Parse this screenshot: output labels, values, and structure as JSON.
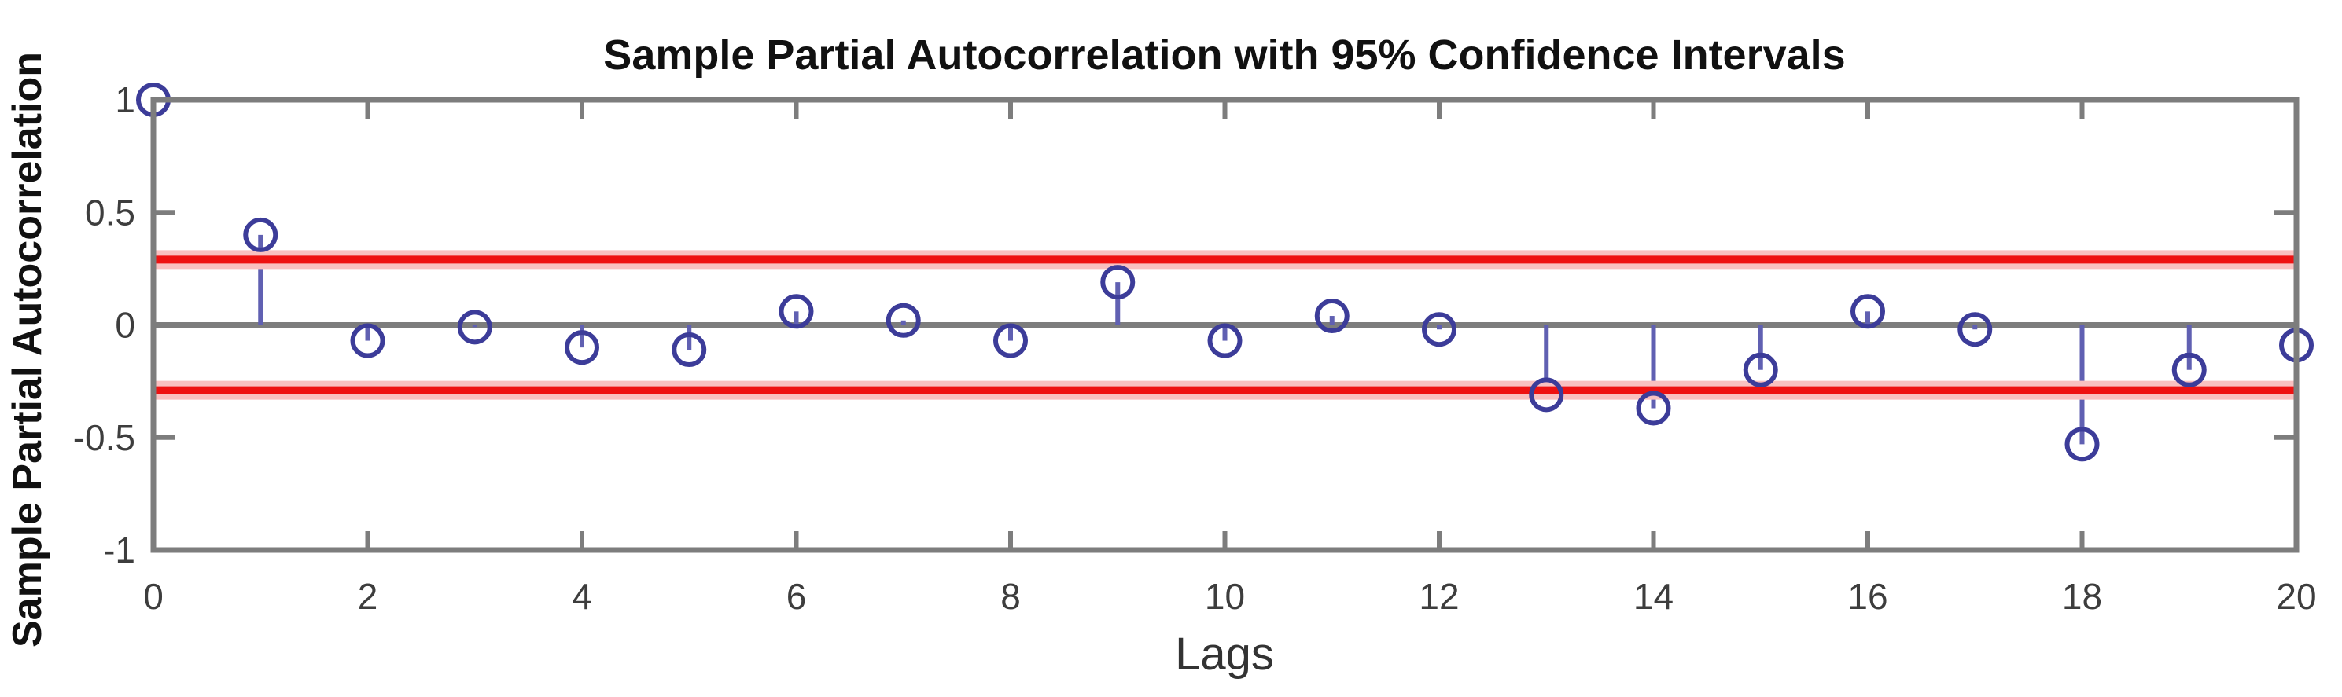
{
  "chart_data": {
    "type": "scatter",
    "subtype": "stem-pacf",
    "title": "Sample Partial Autocorrelation with 95% Confidence Intervals",
    "xlabel": "Lags",
    "ylabel": "Sample Partial Autocorrelation",
    "x": [
      0,
      1,
      2,
      3,
      4,
      5,
      6,
      7,
      8,
      9,
      10,
      11,
      12,
      13,
      14,
      15,
      16,
      17,
      18,
      19,
      20
    ],
    "values": [
      1.0,
      0.4,
      -0.07,
      -0.01,
      -0.1,
      -0.11,
      0.06,
      0.02,
      -0.07,
      0.19,
      -0.07,
      0.04,
      -0.02,
      -0.31,
      -0.37,
      -0.2,
      0.06,
      -0.02,
      -0.53,
      -0.2,
      -0.09
    ],
    "confidence_intervals": {
      "label": "95%",
      "upper": 0.29,
      "lower": -0.29
    },
    "xlim": [
      0,
      20
    ],
    "ylim": [
      -1,
      1
    ],
    "x_ticks": [
      0,
      2,
      4,
      6,
      8,
      10,
      12,
      14,
      16,
      18,
      20
    ],
    "x_tick_labels": [
      "0",
      "2",
      "4",
      "6",
      "8",
      "10",
      "12",
      "14",
      "16",
      "18",
      "20"
    ],
    "y_ticks": [
      1,
      0.5,
      0,
      -0.5,
      -1
    ],
    "y_tick_labels": [
      "1",
      "0.5",
      "0",
      "-0.5",
      "-1"
    ],
    "grid": false,
    "legend": false
  },
  "style": {
    "background": "#ffffff",
    "axis_color": "#7d7d7d",
    "zero_line_color": "#7d7d7d",
    "stem_color": "#6060b2",
    "marker_color": "#3c3c99",
    "confidence_line_color": "#ee1111",
    "confidence_halo_color": "#f9c0c0",
    "title_color": "#111111",
    "tick_label_color": "#3d3d3d",
    "xlabel_color": "#333333"
  }
}
